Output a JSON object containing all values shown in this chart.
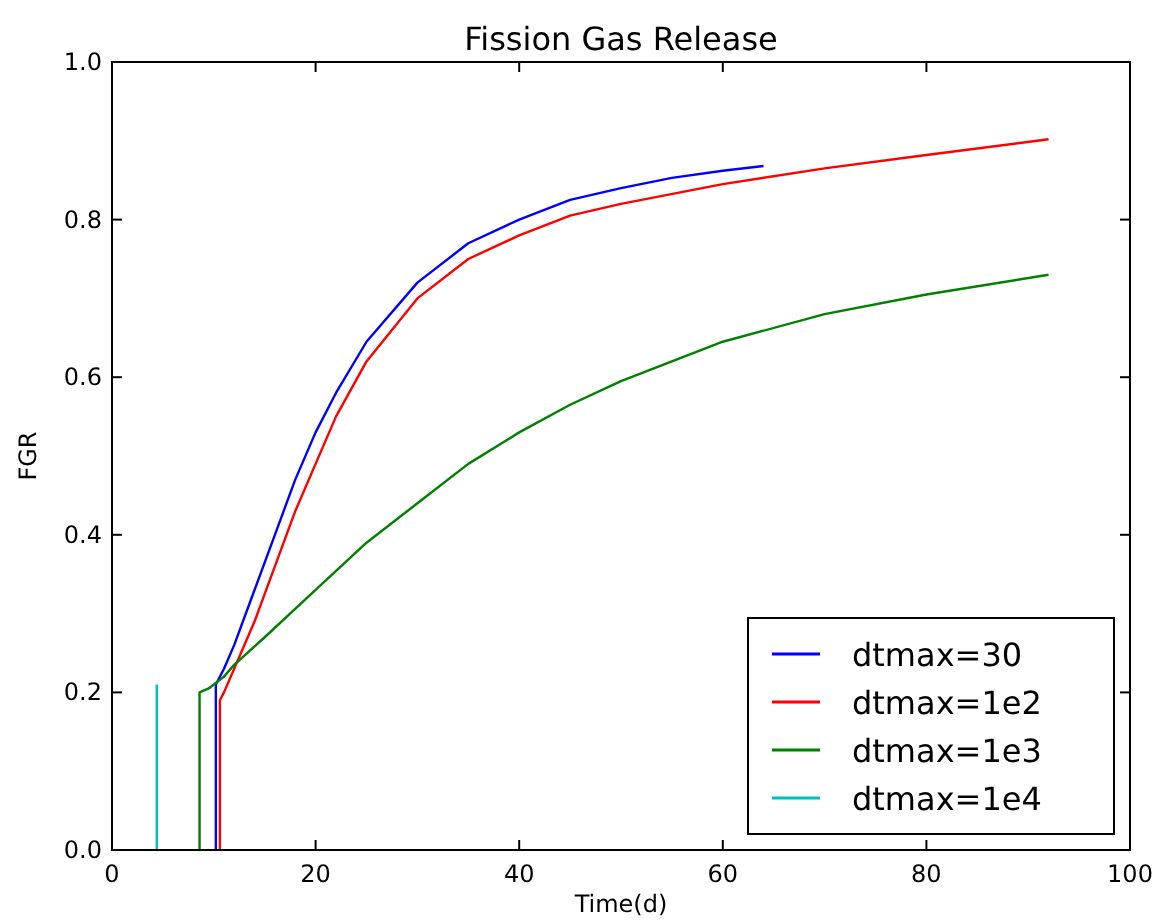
{
  "chart_data": {
    "type": "line",
    "title": "Fission Gas Release",
    "xlabel": "Time(d)",
    "ylabel": "FGR",
    "xlim": [
      0,
      100
    ],
    "ylim": [
      0,
      1
    ],
    "xticks": [
      0,
      20,
      40,
      60,
      80,
      100
    ],
    "yticks": [
      {
        "value": 0,
        "label": "0.0"
      },
      {
        "value": 0.2,
        "label": "0.2"
      },
      {
        "value": 0.4,
        "label": "0.4"
      },
      {
        "value": 0.6,
        "label": "0.6"
      },
      {
        "value": 0.8,
        "label": "0.8"
      },
      {
        "value": 1,
        "label": "1.0"
      }
    ],
    "grid": false,
    "legend": "bottom right",
    "series": [
      {
        "name": "dtmax=30",
        "color": "#0000ff",
        "x": [
          10.2,
          10.2,
          11,
          12,
          14,
          16,
          18,
          20,
          22,
          25,
          30,
          35,
          40,
          45,
          50,
          55,
          60,
          64
        ],
        "values": [
          0,
          0.21,
          0.23,
          0.26,
          0.33,
          0.4,
          0.47,
          0.53,
          0.58,
          0.645,
          0.72,
          0.77,
          0.8,
          0.825,
          0.84,
          0.853,
          0.862,
          0.868
        ]
      },
      {
        "name": "dtmax=1e2",
        "color": "#ff0000",
        "x": [
          10.6,
          10.6,
          11,
          12,
          14,
          16,
          18,
          20,
          22,
          25,
          30,
          35,
          40,
          45,
          50,
          60,
          70,
          80,
          92
        ],
        "values": [
          0,
          0.19,
          0.2,
          0.23,
          0.29,
          0.36,
          0.43,
          0.49,
          0.55,
          0.62,
          0.7,
          0.75,
          0.78,
          0.805,
          0.82,
          0.845,
          0.865,
          0.882,
          0.902
        ]
      },
      {
        "name": "dtmax=1e3",
        "color": "#008000",
        "x": [
          8.6,
          8.6,
          9.5,
          11,
          12,
          15,
          20,
          25,
          30,
          35,
          40,
          45,
          50,
          55,
          60,
          70,
          80,
          92
        ],
        "values": [
          0,
          0.2,
          0.205,
          0.22,
          0.235,
          0.27,
          0.33,
          0.39,
          0.44,
          0.49,
          0.53,
          0.565,
          0.595,
          0.62,
          0.645,
          0.68,
          0.705,
          0.73
        ]
      },
      {
        "name": "dtmax=1e4",
        "color": "#00bfbf",
        "x": [
          4.4,
          4.4
        ],
        "values": [
          0,
          0.21
        ]
      }
    ]
  }
}
